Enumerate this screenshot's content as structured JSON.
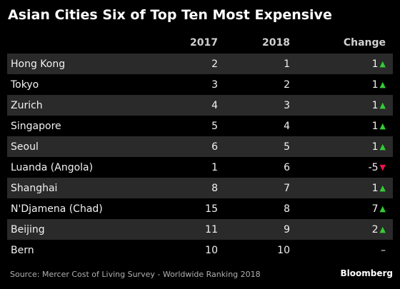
{
  "title": "Asian Cities Six of Top Ten Most Expensive",
  "source": "Source: Mercer Cost of Living Survey - Worldwide Ranking 2018",
  "brand": "Bloomberg",
  "colors": {
    "background": "#000000",
    "row_shade": "#2a2a2a",
    "up": "#33cc33",
    "down": "#e8174a"
  },
  "chart_data": {
    "type": "table",
    "columns": [
      "",
      "2017",
      "2018",
      "Change"
    ],
    "rows": [
      {
        "city": "Hong Kong",
        "y2017": "2",
        "y2018": "1",
        "change": "1",
        "direction": "up"
      },
      {
        "city": "Tokyo",
        "y2017": "3",
        "y2018": "2",
        "change": "1",
        "direction": "up"
      },
      {
        "city": "Zurich",
        "y2017": "4",
        "y2018": "3",
        "change": "1",
        "direction": "up"
      },
      {
        "city": "Singapore",
        "y2017": "5",
        "y2018": "4",
        "change": "1",
        "direction": "up"
      },
      {
        "city": "Seoul",
        "y2017": "6",
        "y2018": "5",
        "change": "1",
        "direction": "up"
      },
      {
        "city": "Luanda (Angola)",
        "y2017": "1",
        "y2018": "6",
        "change": "-5",
        "direction": "down"
      },
      {
        "city": "Shanghai",
        "y2017": "8",
        "y2018": "7",
        "change": "1",
        "direction": "up"
      },
      {
        "city": "N'Djamena (Chad)",
        "y2017": "15",
        "y2018": "8",
        "change": "7",
        "direction": "up"
      },
      {
        "city": "Beijing",
        "y2017": "11",
        "y2018": "9",
        "change": "2",
        "direction": "up"
      },
      {
        "city": "Bern",
        "y2017": "10",
        "y2018": "10",
        "change": "–",
        "direction": "none"
      }
    ]
  }
}
